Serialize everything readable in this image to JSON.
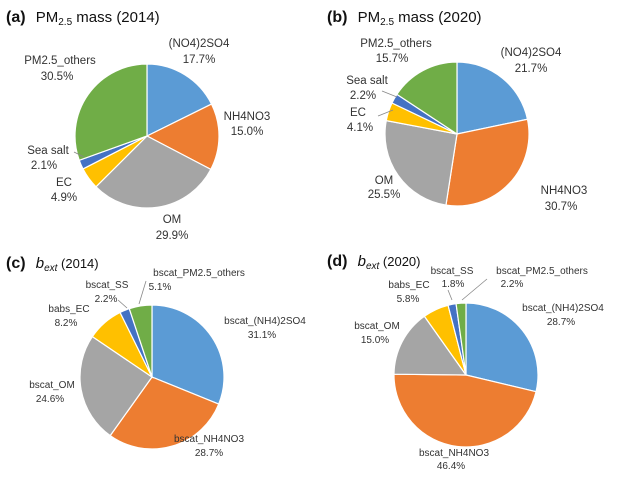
{
  "chart_data": [
    {
      "type": "pie",
      "panel": "(a)",
      "title_main": "PM",
      "title_sub": "2.5",
      "title_rest": " mass (2014)",
      "slices": [
        {
          "name": "(NO4)2SO4",
          "label": "17.7%",
          "value": 17.7,
          "color": "#5b9bd5"
        },
        {
          "name": "NH4NO3",
          "label": "15.0%",
          "value": 15.0,
          "color": "#ed7d31"
        },
        {
          "name": "OM",
          "label": "29.9%",
          "value": 29.9,
          "color": "#a5a5a5"
        },
        {
          "name": "EC",
          "label": "4.9%",
          "value": 4.9,
          "color": "#ffc000"
        },
        {
          "name": "Sea salt",
          "label": "2.1%",
          "value": 2.1,
          "color": "#4472c4"
        },
        {
          "name": "PM2.5_others",
          "label": "30.5%",
          "value": 30.5,
          "color": "#70ad47"
        }
      ]
    },
    {
      "type": "pie",
      "panel": "(b)",
      "title_main": "PM",
      "title_sub": "2.5",
      "title_rest": " mass (2020)",
      "slices": [
        {
          "name": "(NO4)2SO4",
          "label": "21.7%",
          "value": 21.7,
          "color": "#5b9bd5"
        },
        {
          "name": "NH4NO3",
          "label": "30.7%",
          "value": 30.7,
          "color": "#ed7d31"
        },
        {
          "name": "OM",
          "label": "25.5%",
          "value": 25.5,
          "color": "#a5a5a5"
        },
        {
          "name": "EC",
          "label": "4.1%",
          "value": 4.1,
          "color": "#ffc000"
        },
        {
          "name": "Sea salt",
          "label": "2.2%",
          "value": 2.2,
          "color": "#4472c4"
        },
        {
          "name": "PM2.5_others",
          "label": "15.7%",
          "value": 15.7,
          "color": "#70ad47"
        }
      ]
    },
    {
      "type": "pie",
      "panel": "(c)",
      "title_main": "b",
      "title_sub": "ext",
      "title_rest": " (2014)",
      "slices": [
        {
          "name": "bscat_(NH4)2SO4",
          "label": "31.1%",
          "value": 31.1,
          "color": "#5b9bd5"
        },
        {
          "name": "bscat_NH4NO3",
          "label": "28.7%",
          "value": 28.7,
          "color": "#ed7d31"
        },
        {
          "name": "bscat_OM",
          "label": "24.6%",
          "value": 24.6,
          "color": "#a5a5a5"
        },
        {
          "name": "babs_EC",
          "label": "8.2%",
          "value": 8.2,
          "color": "#ffc000"
        },
        {
          "name": "bscat_SS",
          "label": "2.2%",
          "value": 2.2,
          "color": "#4472c4"
        },
        {
          "name": "bscat_PM2.5_others",
          "label": "5.1%",
          "value": 5.1,
          "color": "#70ad47"
        }
      ]
    },
    {
      "type": "pie",
      "panel": "(d)",
      "title_main": "b",
      "title_sub": "ext",
      "title_rest": " (2020)",
      "slices": [
        {
          "name": "bscat_(NH4)2SO4",
          "label": "28.7%",
          "value": 28.7,
          "color": "#5b9bd5"
        },
        {
          "name": "bscat_NH4NO3",
          "label": "46.4%",
          "value": 46.4,
          "color": "#ed7d31"
        },
        {
          "name": "bscat_OM",
          "label": "15.0%",
          "value": 15.0,
          "color": "#a5a5a5"
        },
        {
          "name": "babs_EC",
          "label": "5.8%",
          "value": 5.8,
          "color": "#ffc000"
        },
        {
          "name": "bscat_SS",
          "label": "1.8%",
          "value": 1.8,
          "color": "#4472c4"
        },
        {
          "name": "bscat_PM2.5_others",
          "label": "2.2%",
          "value": 2.2,
          "color": "#70ad47"
        }
      ]
    }
  ]
}
